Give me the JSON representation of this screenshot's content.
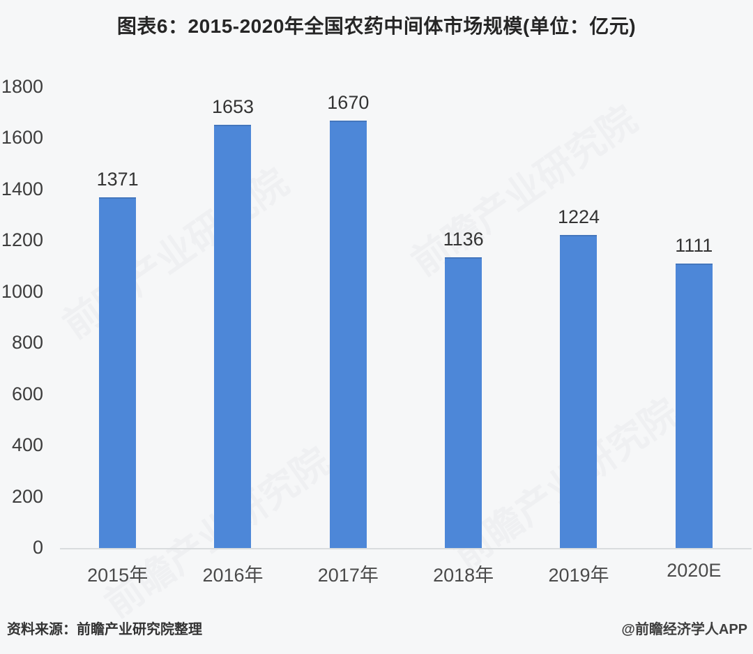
{
  "title": "图表6：2015-2020年全国农药中间体市场规模(单位：亿元)",
  "footer": {
    "source": "资料来源：前瞻产业研究院整理",
    "attribution": "@前瞻经济学人APP"
  },
  "watermark": "前瞻产业研究院",
  "colors": {
    "bar": "#4d87d8",
    "background": "#f6f7f8",
    "axis_line": "#d9dcde",
    "title_text": "#262626",
    "value_label_text": "#333333",
    "tick_text": "#3d3d3d",
    "x_label_text": "#4a4a4a"
  },
  "chart_data": {
    "type": "bar",
    "title": "图表6：2015-2020年全国农药中间体市场规模(单位：亿元)",
    "categories": [
      "2015年",
      "2016年",
      "2017年",
      "2018年",
      "2019年",
      "2020E"
    ],
    "values": [
      1371,
      1653,
      1670,
      1136,
      1224,
      1111
    ],
    "xlabel": "",
    "ylabel": "",
    "unit": "亿元",
    "ylim": [
      0,
      1800
    ],
    "y_ticks": [
      0,
      200,
      400,
      600,
      800,
      1000,
      1200,
      1400,
      1600,
      1800
    ],
    "grid": false,
    "legend": false,
    "data_labels": true,
    "bar_color": "#4d87d8"
  }
}
